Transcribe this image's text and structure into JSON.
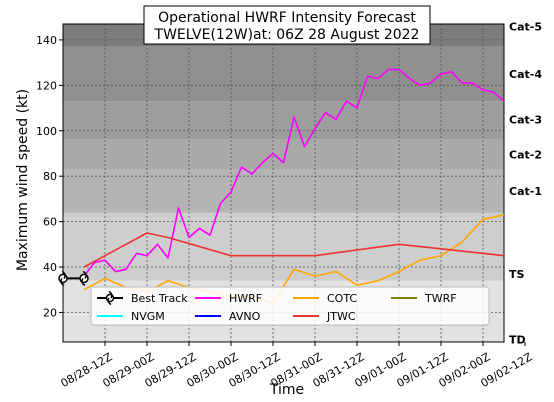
{
  "chart_data": {
    "type": "line",
    "title": [
      "Operational HWRF Intensity Forecast",
      "TWELVE(12W)at: 06Z 28 August 2022"
    ],
    "xlabel": "Time",
    "ylabel": "Maximum wind speed (kt)",
    "xlim": [
      -6,
      120
    ],
    "ylim": [
      7,
      147
    ],
    "x_unit": "hours after 08/28-06Z",
    "yticks": [
      20,
      40,
      60,
      80,
      100,
      120,
      140
    ],
    "xticks": [
      {
        "x": 6,
        "label": "08/28-12Z"
      },
      {
        "x": 18,
        "label": "08/29-00Z"
      },
      {
        "x": 30,
        "label": "08/29-12Z"
      },
      {
        "x": 42,
        "label": "08/30-00Z"
      },
      {
        "x": 54,
        "label": "08/30-12Z"
      },
      {
        "x": 66,
        "label": "08/31-00Z"
      },
      {
        "x": 78,
        "label": "08/31-12Z"
      },
      {
        "x": 90,
        "label": "09/01-00Z"
      },
      {
        "x": 102,
        "label": "09/01-12Z"
      },
      {
        "x": 114,
        "label": "09/02-00Z"
      },
      {
        "x": 126,
        "label": "09/02-12Z"
      }
    ],
    "bands": [
      {
        "label": "TD",
        "from": 0,
        "to": 34,
        "color": "#e2e2e2"
      },
      {
        "label": "TS",
        "from": 34,
        "to": 64,
        "color": "#cecece"
      },
      {
        "label": "Cat-1",
        "from": 64,
        "to": 83,
        "color": "#b4b4b4"
      },
      {
        "label": "Cat-2",
        "from": 83,
        "to": 96,
        "color": "#a9a9a9"
      },
      {
        "label": "Cat-3",
        "from": 96,
        "to": 113,
        "color": "#9d9d9d"
      },
      {
        "label": "Cat-4",
        "from": 113,
        "to": 137,
        "color": "#909090"
      },
      {
        "label": "Cat-5",
        "from": 137,
        "to": 160,
        "color": "#7c7c7c"
      }
    ],
    "band_labels": [
      {
        "label": "Cat-5",
        "y": 146
      },
      {
        "label": "Cat-4",
        "y": 125
      },
      {
        "label": "Cat-3",
        "y": 105
      },
      {
        "label": "Cat-2",
        "y": 89.5
      },
      {
        "label": "Cat-1",
        "y": 73.5
      },
      {
        "label": "TS",
        "y": 37
      },
      {
        "label": "TD",
        "y": 8
      }
    ],
    "series": [
      {
        "name": "Best Track",
        "color": "#000000",
        "x": [
          -6,
          0
        ],
        "y": [
          35,
          35
        ],
        "marker": "hurricane"
      },
      {
        "name": "HWRF",
        "color": "#ff00ff",
        "x": [
          0,
          3,
          6,
          9,
          12,
          15,
          18,
          21,
          24,
          27,
          30,
          33,
          36,
          39,
          42,
          45,
          48,
          51,
          54,
          57,
          60,
          63,
          66,
          69,
          72,
          75,
          78,
          81,
          84,
          87,
          90,
          93,
          96,
          99,
          102,
          105,
          108,
          111,
          114,
          117,
          120
        ],
        "y": [
          36,
          42,
          43,
          38,
          39,
          46,
          45,
          50,
          44,
          66,
          53,
          57,
          54,
          68,
          73,
          84,
          81,
          86,
          90,
          86,
          106,
          93,
          101,
          108,
          105,
          113,
          110,
          124,
          123,
          127,
          127,
          123,
          120,
          121,
          125,
          126,
          121,
          121,
          118,
          117,
          113
        ]
      },
      {
        "name": "COTC",
        "color": "#ffa500",
        "x": [
          0,
          6,
          12,
          18,
          24,
          30,
          36,
          42,
          48,
          54,
          60,
          66,
          72,
          78,
          84,
          90,
          96,
          102,
          108,
          114,
          120
        ],
        "y": [
          30,
          35,
          31,
          29,
          34,
          31,
          29,
          27,
          27,
          24,
          39,
          36,
          38,
          32,
          34,
          38,
          43,
          45,
          51,
          61,
          63
        ]
      },
      {
        "name": "JTWC",
        "color": "#ee3333",
        "x": [
          0,
          6,
          18,
          24,
          42,
          66,
          90,
          108,
          120
        ],
        "y": [
          40,
          45,
          55,
          53,
          45,
          45,
          50,
          47,
          45
        ]
      },
      {
        "name": "TWRF",
        "color": "#808000",
        "x": [],
        "y": []
      },
      {
        "name": "NVGM",
        "color": "#00ffff",
        "x": [],
        "y": []
      },
      {
        "name": "AVNO",
        "color": "#0000ff",
        "x": [],
        "y": []
      }
    ],
    "legend_position": "lower-center",
    "legend_order": [
      "Best Track",
      "HWRF",
      "COTC",
      "TWRF",
      "NVGM",
      "AVNO",
      "JTWC"
    ],
    "grid": true
  }
}
